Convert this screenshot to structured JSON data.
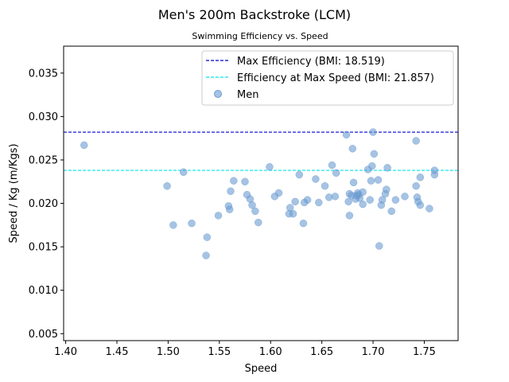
{
  "chart_data": {
    "type": "scatter",
    "title": "Men's 200m Backstroke (LCM)",
    "subtitle": "Swimming Efficiency vs. Speed",
    "xlabel": "Speed",
    "ylabel": "Speed / Kg (m/Kgs)",
    "xlim": [
      1.398,
      1.783
    ],
    "ylim": [
      0.0042,
      0.0381
    ],
    "xticks": [
      "1.40",
      "1.45",
      "1.50",
      "1.55",
      "1.60",
      "1.65",
      "1.70",
      "1.75"
    ],
    "yticks": [
      "0.005",
      "0.010",
      "0.015",
      "0.020",
      "0.025",
      "0.030",
      "0.035"
    ],
    "grid": false,
    "legend_position": "top-right",
    "hlines": [
      {
        "label": "Max Efficiency (BMI: 18.519)",
        "y": 0.0282,
        "color": "#0000cc",
        "style": "dashed"
      },
      {
        "label": "Efficiency at Max Speed (BMI: 21.857)",
        "y": 0.0238,
        "color": "#00e5ee",
        "style": "dashed"
      }
    ],
    "series": [
      {
        "name": "Men",
        "color": "#6a9bd1",
        "points": [
          [
            1.418,
            0.0267
          ],
          [
            1.499,
            0.022
          ],
          [
            1.505,
            0.0175
          ],
          [
            1.515,
            0.0236
          ],
          [
            1.523,
            0.0177
          ],
          [
            1.537,
            0.014
          ],
          [
            1.538,
            0.0161
          ],
          [
            1.549,
            0.0186
          ],
          [
            1.559,
            0.0197
          ],
          [
            1.56,
            0.0193
          ],
          [
            1.561,
            0.0214
          ],
          [
            1.564,
            0.0226
          ],
          [
            1.575,
            0.0225
          ],
          [
            1.577,
            0.021
          ],
          [
            1.58,
            0.0205
          ],
          [
            1.582,
            0.0198
          ],
          [
            1.585,
            0.0191
          ],
          [
            1.588,
            0.0178
          ],
          [
            1.599,
            0.0242
          ],
          [
            1.604,
            0.0208
          ],
          [
            1.608,
            0.0212
          ],
          [
            1.618,
            0.0188
          ],
          [
            1.619,
            0.0195
          ],
          [
            1.622,
            0.0188
          ],
          [
            1.624,
            0.0202
          ],
          [
            1.628,
            0.0233
          ],
          [
            1.632,
            0.0177
          ],
          [
            1.633,
            0.0201
          ],
          [
            1.636,
            0.0204
          ],
          [
            1.644,
            0.0228
          ],
          [
            1.647,
            0.0201
          ],
          [
            1.653,
            0.022
          ],
          [
            1.657,
            0.0207
          ],
          [
            1.66,
            0.0244
          ],
          [
            1.663,
            0.0208
          ],
          [
            1.664,
            0.0235
          ],
          [
            1.674,
            0.0279
          ],
          [
            1.676,
            0.0202
          ],
          [
            1.677,
            0.0186
          ],
          [
            1.677,
            0.0211
          ],
          [
            1.679,
            0.0209
          ],
          [
            1.68,
            0.0263
          ],
          [
            1.681,
            0.0224
          ],
          [
            1.683,
            0.0205
          ],
          [
            1.684,
            0.0209
          ],
          [
            1.685,
            0.0212
          ],
          [
            1.686,
            0.021
          ],
          [
            1.687,
            0.0206
          ],
          [
            1.69,
            0.0199
          ],
          [
            1.69,
            0.0213
          ],
          [
            1.695,
            0.0239
          ],
          [
            1.697,
            0.0204
          ],
          [
            1.698,
            0.0226
          ],
          [
            1.699,
            0.0243
          ],
          [
            1.7,
            0.0282
          ],
          [
            1.701,
            0.0257
          ],
          [
            1.705,
            0.0227
          ],
          [
            1.706,
            0.0151
          ],
          [
            1.708,
            0.0198
          ],
          [
            1.709,
            0.0204
          ],
          [
            1.712,
            0.0211
          ],
          [
            1.713,
            0.0216
          ],
          [
            1.714,
            0.0241
          ],
          [
            1.718,
            0.0191
          ],
          [
            1.722,
            0.0204
          ],
          [
            1.731,
            0.0208
          ],
          [
            1.742,
            0.0272
          ],
          [
            1.742,
            0.022
          ],
          [
            1.743,
            0.0207
          ],
          [
            1.744,
            0.0202
          ],
          [
            1.746,
            0.023
          ],
          [
            1.746,
            0.0198
          ],
          [
            1.755,
            0.0194
          ],
          [
            1.76,
            0.0238
          ],
          [
            1.76,
            0.0233
          ]
        ]
      }
    ]
  }
}
